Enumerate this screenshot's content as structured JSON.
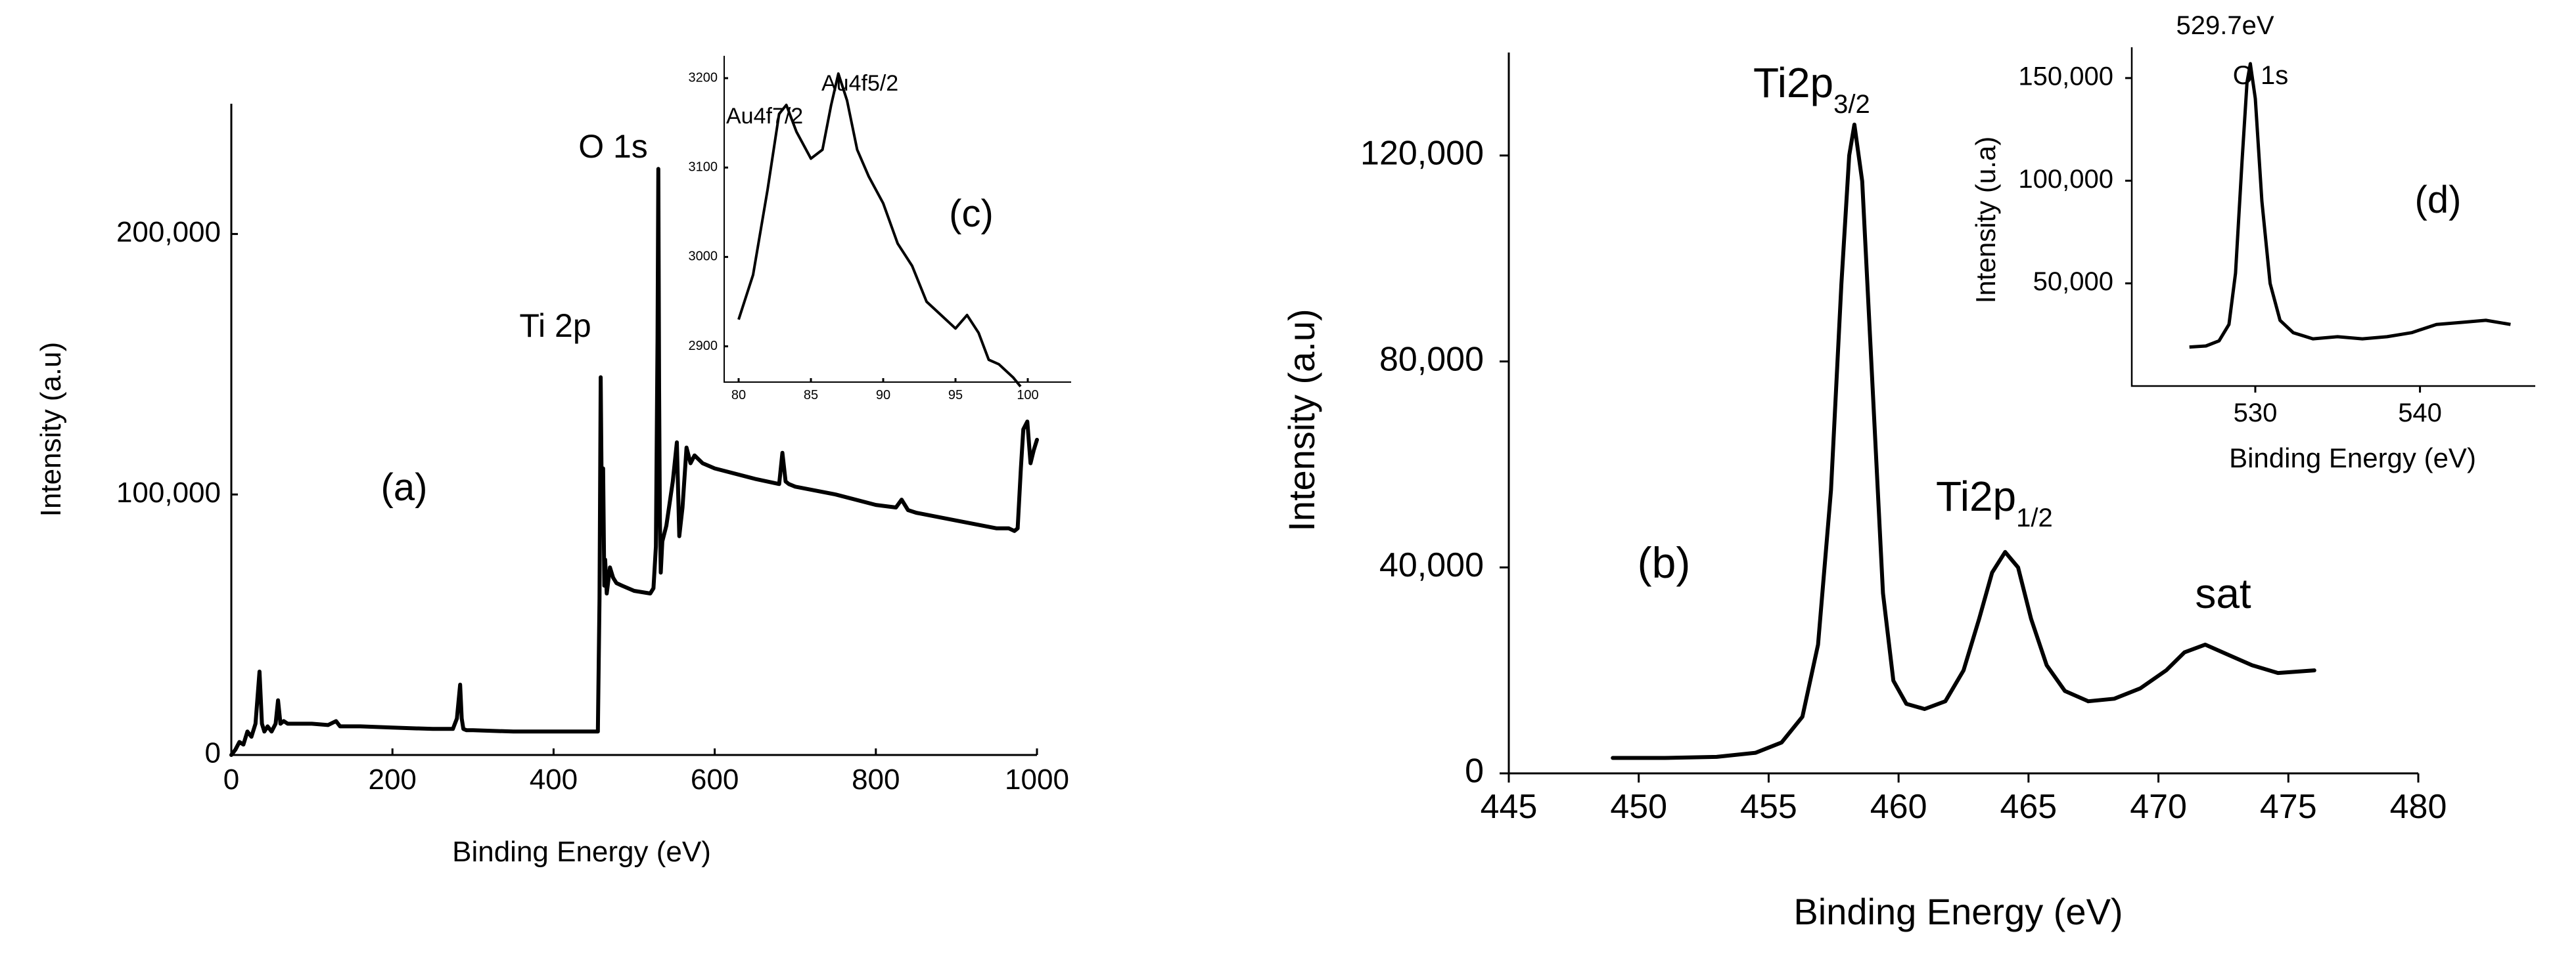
{
  "chart_data": [
    {
      "panel": "(a)",
      "type": "line",
      "xlabel": "Binding Energy (eV)",
      "ylabel": "Intensity (a.u)",
      "xlim": [
        0,
        1000
      ],
      "ylim": [
        0,
        250000
      ],
      "xticks": [
        0,
        200,
        400,
        600,
        800,
        1000
      ],
      "xtick_labels": [
        "0",
        "200",
        "400",
        "600",
        "800",
        "1000"
      ],
      "yticks": [
        0,
        100000,
        200000
      ],
      "ytick_labels": [
        "0",
        "100,000",
        "200,000"
      ],
      "annotations": [
        {
          "text": "Ti 2p",
          "x": 458
        },
        {
          "text": "O 1s",
          "x": 530
        }
      ],
      "x": [
        0,
        5,
        10,
        15,
        20,
        25,
        30,
        35,
        38,
        41,
        45,
        50,
        55,
        58,
        61,
        65,
        70,
        80,
        100,
        120,
        130,
        135,
        140,
        160,
        200,
        250,
        275,
        280,
        284,
        286,
        288,
        292,
        300,
        350,
        400,
        440,
        452,
        455,
        457,
        458.5,
        460,
        461.5,
        463,
        464,
        466,
        470,
        474,
        478,
        485,
        500,
        520,
        524,
        527,
        529,
        530,
        531,
        532,
        533,
        535,
        540,
        548,
        553,
        556,
        560,
        565,
        570,
        575,
        585,
        600,
        650,
        680,
        684,
        688,
        692,
        700,
        750,
        800,
        825,
        832,
        840,
        850,
        900,
        950,
        965,
        972,
        976,
        980,
        983,
        988,
        992,
        996,
        1000
      ],
      "y": [
        0,
        2000,
        5000,
        4000,
        9000,
        7000,
        12000,
        32000,
        12000,
        9000,
        11000,
        9000,
        12000,
        21000,
        12000,
        13000,
        12000,
        12000,
        12000,
        11500,
        13000,
        11000,
        11000,
        11000,
        10500,
        10000,
        10000,
        14000,
        27000,
        14000,
        10000,
        9500,
        9500,
        9000,
        9000,
        9000,
        9000,
        9000,
        60000,
        145000,
        90000,
        110000,
        65000,
        75000,
        62000,
        72000,
        68000,
        66000,
        65000,
        63000,
        62000,
        64000,
        80000,
        160000,
        225000,
        140000,
        90000,
        70000,
        82000,
        88000,
        105000,
        120000,
        84000,
        95000,
        118000,
        112000,
        115000,
        112000,
        110000,
        106000,
        104000,
        116000,
        105000,
        104000,
        103000,
        100000,
        96000,
        95000,
        98000,
        94000,
        93000,
        90000,
        87000,
        87000,
        86000,
        87000,
        110000,
        125000,
        128000,
        112000,
        117000,
        121000
      ]
    },
    {
      "panel": "(c)",
      "type": "line",
      "xlabel": "",
      "ylabel": "",
      "xlim": [
        79,
        103
      ],
      "ylim": [
        2860,
        3225
      ],
      "xticks": [
        80,
        85,
        90,
        95,
        100
      ],
      "xtick_labels": [
        "80",
        "85",
        "90",
        "95",
        "100"
      ],
      "yticks": [
        2900,
        3000,
        3100,
        3200
      ],
      "ytick_labels": [
        "2900",
        "3000",
        "3100",
        "3200"
      ],
      "annotations": [
        {
          "text": "Au4f7/2",
          "x": 83.2
        },
        {
          "text": "Au4f5/2",
          "x": 86.9
        }
      ],
      "x": [
        80,
        81,
        82,
        82.8,
        83.3,
        84,
        85,
        85.8,
        86.4,
        86.9,
        87.5,
        88.2,
        89,
        90,
        91,
        92,
        93,
        94,
        95,
        95.8,
        96.6,
        97.3,
        98,
        99,
        99.5
      ],
      "y": [
        2930,
        2980,
        3075,
        3160,
        3170,
        3140,
        3110,
        3120,
        3170,
        3205,
        3175,
        3120,
        3090,
        3060,
        3015,
        2990,
        2950,
        2935,
        2920,
        2935,
        2915,
        2885,
        2880,
        2865,
        2855
      ]
    },
    {
      "panel": "(b)",
      "type": "line",
      "xlabel": "Binding Energy (eV)",
      "ylabel": "Intensity (a.u)",
      "xlim": [
        445,
        480
      ],
      "ylim": [
        0,
        140000
      ],
      "xticks": [
        445,
        450,
        455,
        460,
        465,
        470,
        475,
        480
      ],
      "xtick_labels": [
        "445",
        "450",
        "455",
        "460",
        "465",
        "470",
        "475",
        "480"
      ],
      "yticks": [
        0,
        40000,
        80000,
        120000
      ],
      "ytick_labels": [
        "0",
        "40,000",
        "80,000",
        "120,000"
      ],
      "annotations": [
        {
          "text": "Ti2p",
          "sub": "3/2",
          "x": 458.3
        },
        {
          "text": "Ti2p",
          "sub": "1/2",
          "x": 464.1
        },
        {
          "text": "sat",
          "x": 471.8
        }
      ],
      "x": [
        449,
        451,
        453,
        454.5,
        455.5,
        456.3,
        456.9,
        457.4,
        457.8,
        458.1,
        458.3,
        458.6,
        459,
        459.4,
        459.8,
        460.3,
        461,
        461.8,
        462.5,
        463.1,
        463.6,
        464.1,
        464.6,
        465.1,
        465.7,
        466.4,
        467.3,
        468.3,
        469.3,
        470.3,
        471,
        471.8,
        472.7,
        473.6,
        474.6,
        476
      ],
      "y": [
        3000,
        3000,
        3200,
        4000,
        6000,
        11000,
        25000,
        55000,
        95000,
        120000,
        126000,
        115000,
        75000,
        35000,
        18000,
        13500,
        12500,
        14000,
        20000,
        30000,
        39000,
        43000,
        40000,
        30000,
        21000,
        16000,
        14000,
        14500,
        16500,
        20000,
        23500,
        25000,
        23000,
        21000,
        19500,
        20000
      ]
    },
    {
      "panel": "(d)",
      "type": "line",
      "xlabel": "Binding Energy (eV)",
      "ylabel": "Intensity (u.a)",
      "xlim": [
        522.5,
        547
      ],
      "ylim": [
        0,
        165000
      ],
      "xticks": [
        530,
        540
      ],
      "xtick_labels": [
        "530",
        "540"
      ],
      "yticks": [
        50000,
        100000,
        150000
      ],
      "ytick_labels": [
        "50,000",
        "100,000",
        "150,000"
      ],
      "annotations": [
        {
          "text": "529.7eV",
          "x": 529.7
        },
        {
          "text": "O 1s",
          "x": 529.7
        }
      ],
      "x": [
        526,
        527,
        527.8,
        528.4,
        528.8,
        529.2,
        529.5,
        529.7,
        530,
        530.4,
        530.9,
        531.5,
        532.3,
        533.5,
        535,
        536.5,
        538,
        539.5,
        541,
        542.5,
        544,
        545.5
      ],
      "y": [
        19000,
        19500,
        22000,
        30000,
        55000,
        110000,
        148000,
        157000,
        140000,
        90000,
        50000,
        32000,
        26000,
        23000,
        24000,
        23000,
        24000,
        26000,
        30000,
        31000,
        32000,
        30000
      ]
    }
  ],
  "labels": {
    "panel_a": "(a)",
    "panel_b": "(b)",
    "panel_c": "(c)",
    "panel_d": "(d)",
    "ti2p_survey": "Ti 2p",
    "o1s_survey": "O 1s",
    "au4f72": "Au4f7/2",
    "au4f52": "Au4f5/2",
    "ti2p32_main": "Ti2p",
    "ti2p32_sub": "3/2",
    "ti2p12_main": "Ti2p",
    "ti2p12_sub": "1/2",
    "sat": "sat",
    "peak_d_value": "529.7eV",
    "o1s_inset": "O 1s",
    "xlabel_a": "Binding Energy (eV)",
    "ylabel_a": "Intensity (a.u)",
    "xlabel_b": "Binding Energy (eV)",
    "ylabel_b": "Intensity (a.u)",
    "xlabel_d": "Binding Energy (eV)",
    "ylabel_d": "Intensity (u.a)"
  }
}
